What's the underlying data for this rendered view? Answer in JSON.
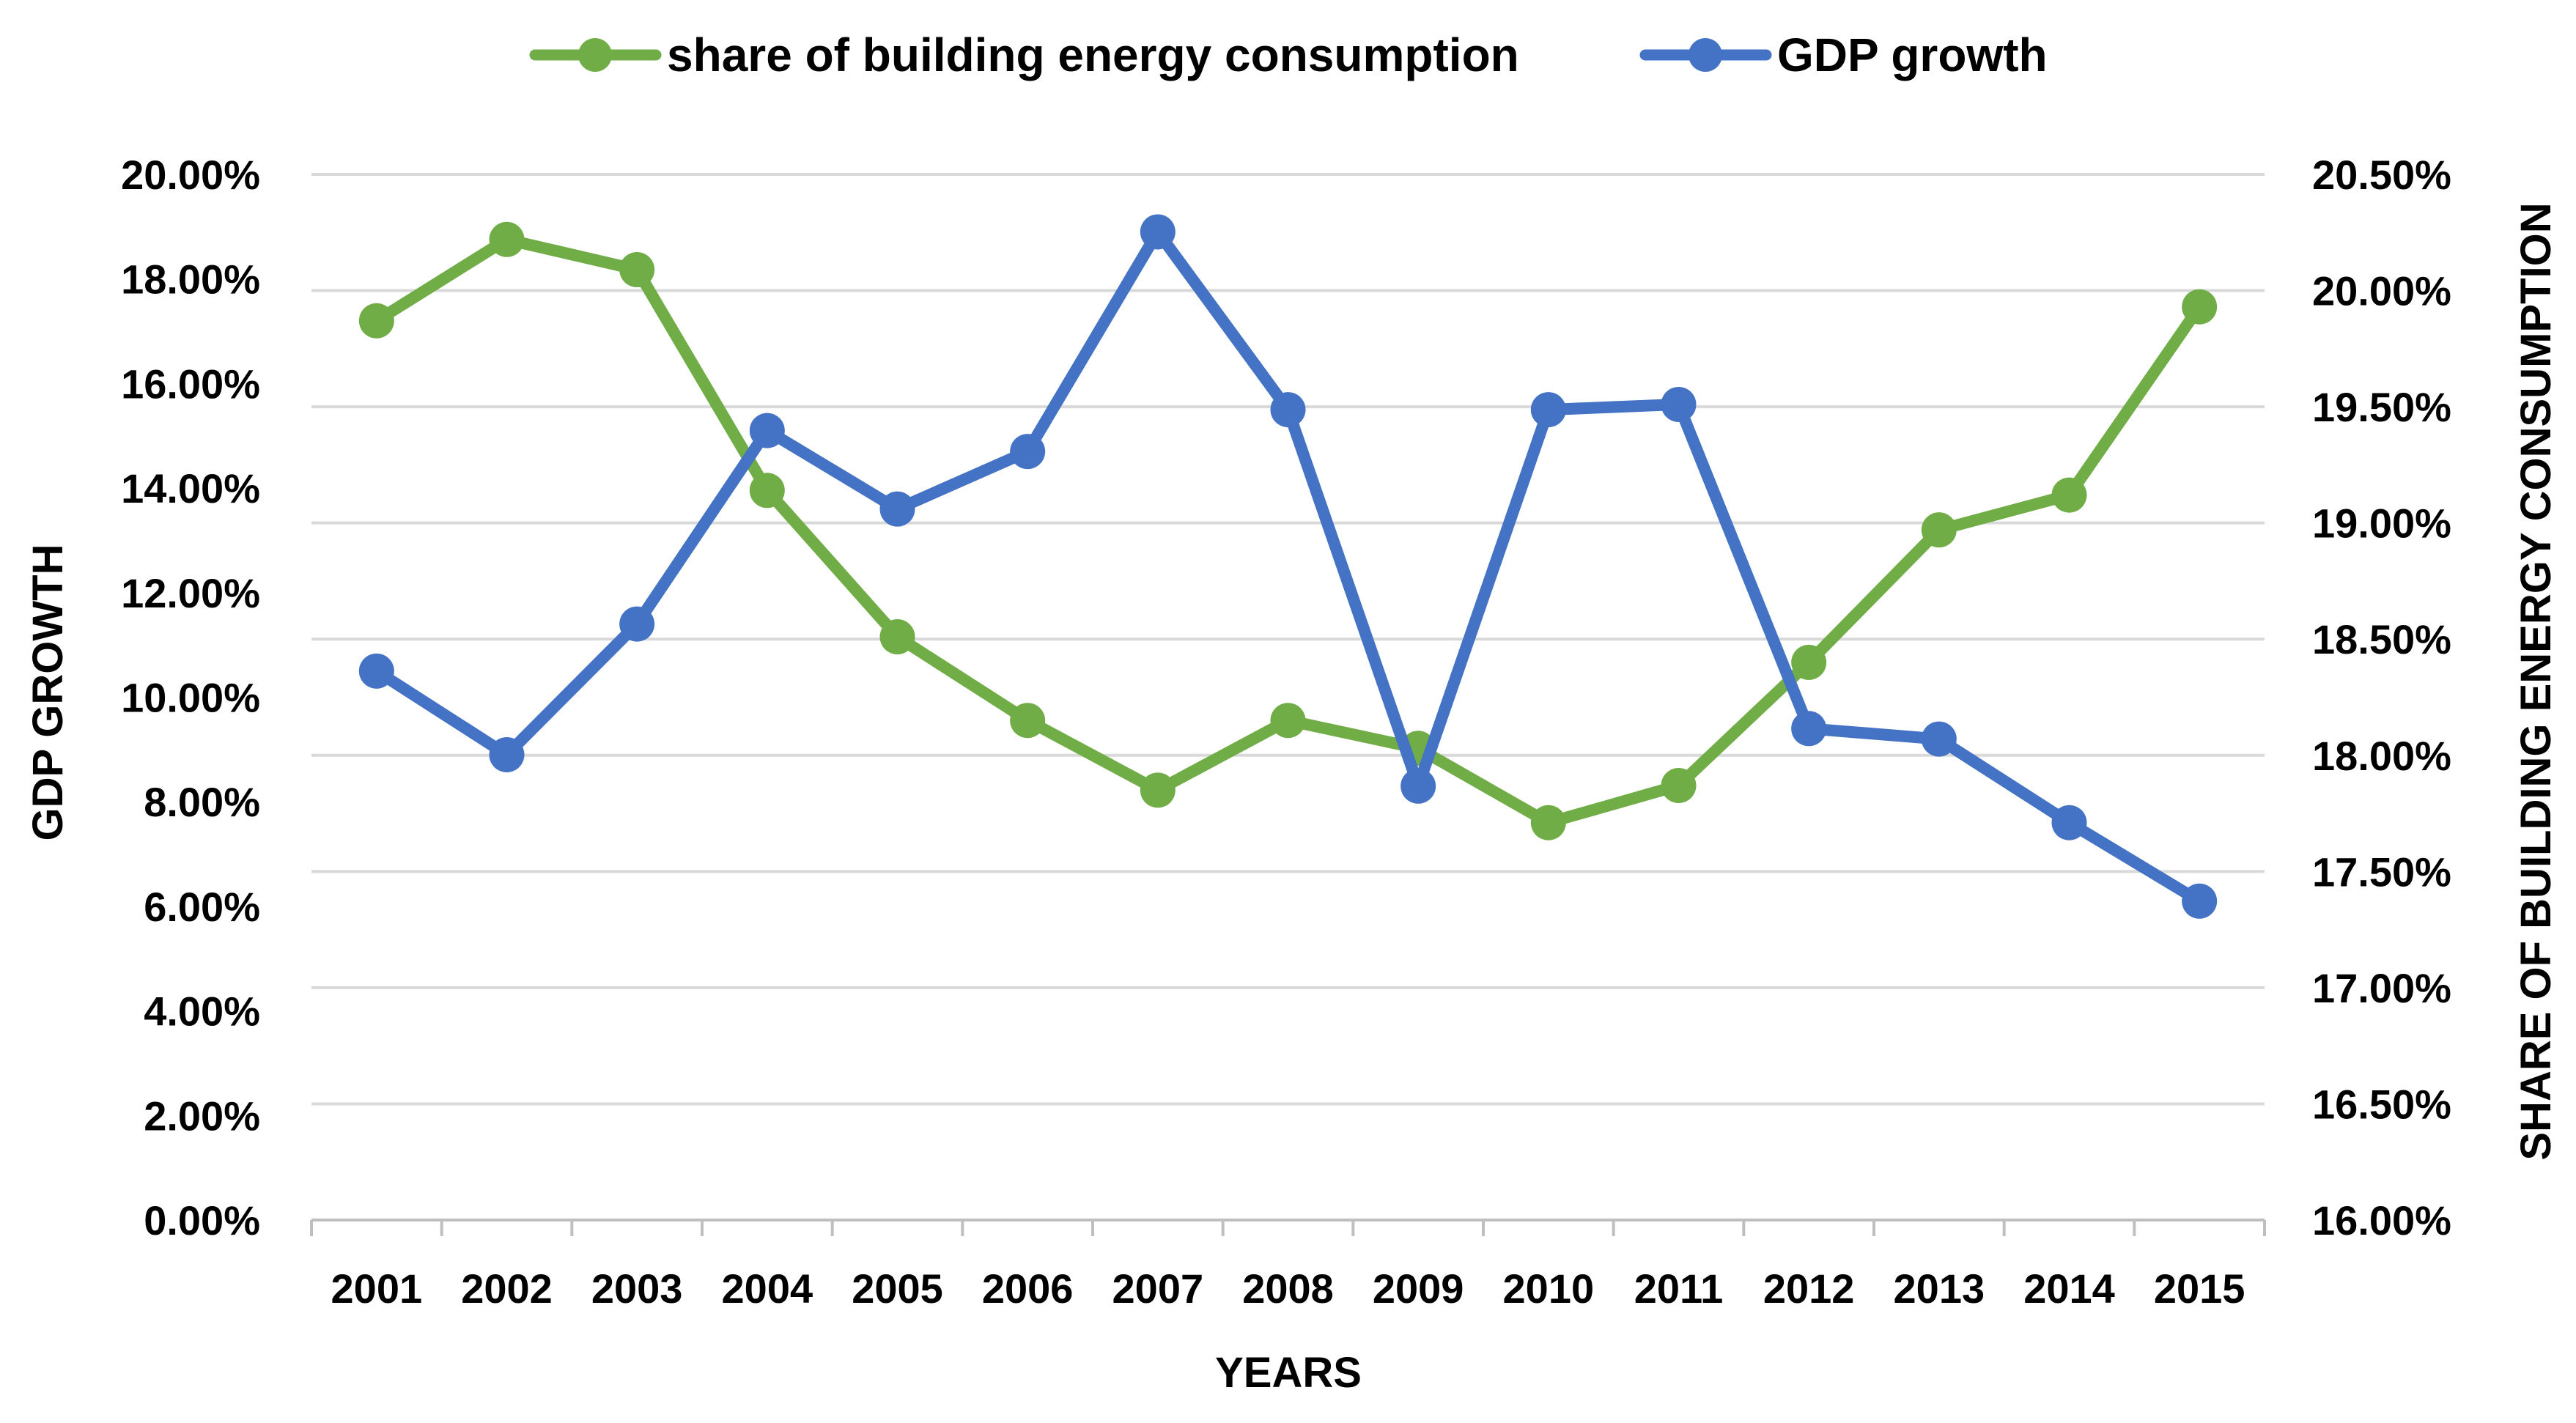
{
  "chart_data": {
    "type": "line",
    "title": "",
    "xlabel": "YEARS",
    "ylabel_left": "GDP GROWTH",
    "ylabel_right": "SHARE OF BUILDING ENERGY CONSUMPTION",
    "categories": [
      "2001",
      "2002",
      "2003",
      "2004",
      "2005",
      "2006",
      "2007",
      "2008",
      "2009",
      "2010",
      "2011",
      "2012",
      "2013",
      "2014",
      "2015"
    ],
    "y_left": {
      "min": 0,
      "max": 20,
      "step": 2,
      "tick_labels": [
        "0.00%",
        "2.00%",
        "4.00%",
        "6.00%",
        "8.00%",
        "10.00%",
        "12.00%",
        "14.00%",
        "16.00%",
        "18.00%",
        "20.00%"
      ]
    },
    "y_right": {
      "min": 16,
      "max": 20.5,
      "step": 0.5,
      "tick_labels": [
        "16.00%",
        "16.50%",
        "17.00%",
        "17.50%",
        "18.00%",
        "18.50%",
        "19.00%",
        "19.50%",
        "20.00%",
        "20.50%"
      ]
    },
    "grid": true,
    "legend_position": "top",
    "series": [
      {
        "name": "share of building energy consumption",
        "axis": "right",
        "color": "#70AD47",
        "values": [
          19.87,
          20.22,
          20.09,
          19.14,
          18.51,
          18.15,
          17.85,
          18.15,
          18.03,
          17.71,
          17.87,
          18.4,
          18.97,
          19.12,
          19.93
        ]
      },
      {
        "name": "GDP growth",
        "axis": "left",
        "color": "#4472C4",
        "values": [
          10.5,
          8.9,
          11.4,
          15.1,
          13.6,
          14.7,
          18.9,
          15.5,
          8.3,
          15.5,
          15.6,
          9.4,
          9.2,
          7.6,
          6.1
        ]
      }
    ]
  }
}
